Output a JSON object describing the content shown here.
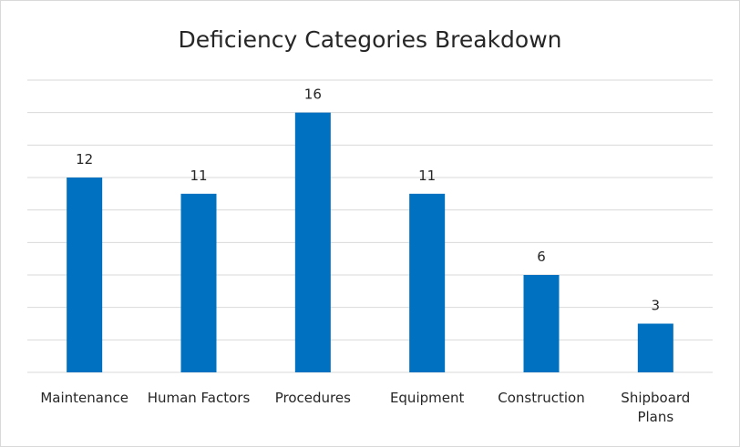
{
  "chart_data": {
    "type": "bar",
    "title": "Deficiency Categories Breakdown",
    "categories": [
      [
        "Maintenance"
      ],
      [
        "Human Factors"
      ],
      [
        "Procedures"
      ],
      [
        "Equipment"
      ],
      [
        "Construction"
      ],
      [
        "Shipboard",
        "Plans"
      ]
    ],
    "values": [
      12,
      11,
      16,
      11,
      6,
      3
    ],
    "ylim": [
      0,
      18
    ],
    "grid": true,
    "bar_color": "#0070c0",
    "grid_color": "#d9d9d9"
  }
}
